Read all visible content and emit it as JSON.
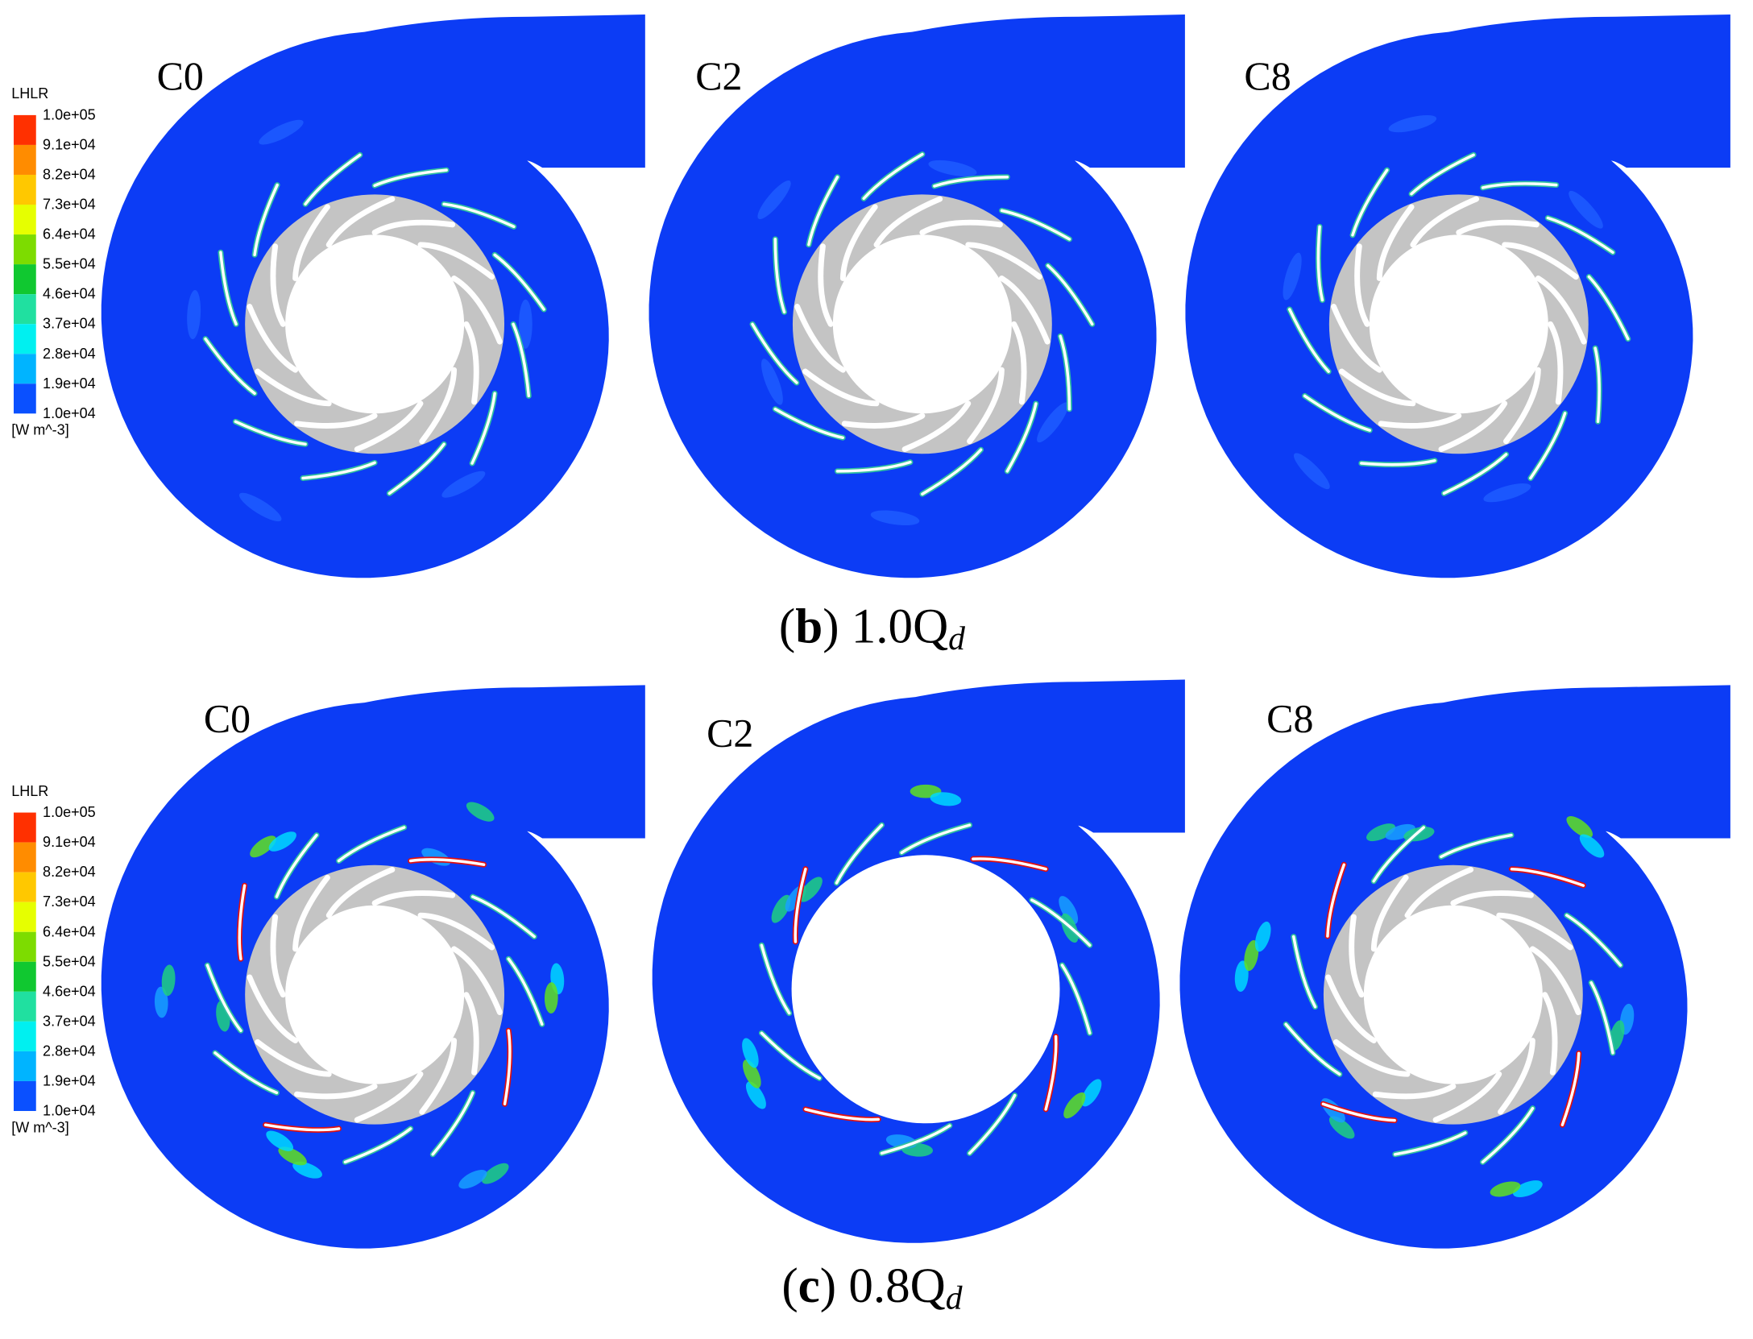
{
  "figure": {
    "rows": [
      {
        "caption": {
          "open": "(",
          "letter": "b",
          "text": ") 1.0Q",
          "subscript": "d"
        },
        "legend": {
          "title": "LHLR",
          "ticks": [
            "1.0e+05",
            "9.1e+04",
            "8.2e+04",
            "7.3e+04",
            "6.4e+04",
            "5.5e+04",
            "4.6e+04",
            "3.7e+04",
            "2.8e+04",
            "1.9e+04",
            "1.0e+04"
          ],
          "unit": "[W m^-3]"
        },
        "plots": [
          {
            "label": "C0"
          },
          {
            "label": "C2"
          },
          {
            "label": "C8"
          }
        ]
      },
      {
        "caption": {
          "open": "(",
          "letter": "c",
          "text": ") 0.8Q",
          "subscript": "d"
        },
        "legend": {
          "title": "LHLR",
          "ticks": [
            "1.0e+05",
            "9.1e+04",
            "8.2e+04",
            "7.3e+04",
            "6.4e+04",
            "5.5e+04",
            "4.6e+04",
            "3.7e+04",
            "2.8e+04",
            "1.9e+04",
            "1.0e+04"
          ],
          "unit": "[W m^-3]"
        },
        "plots": [
          {
            "label": "C0"
          },
          {
            "label": "C2"
          },
          {
            "label": "C8"
          }
        ]
      }
    ]
  }
}
